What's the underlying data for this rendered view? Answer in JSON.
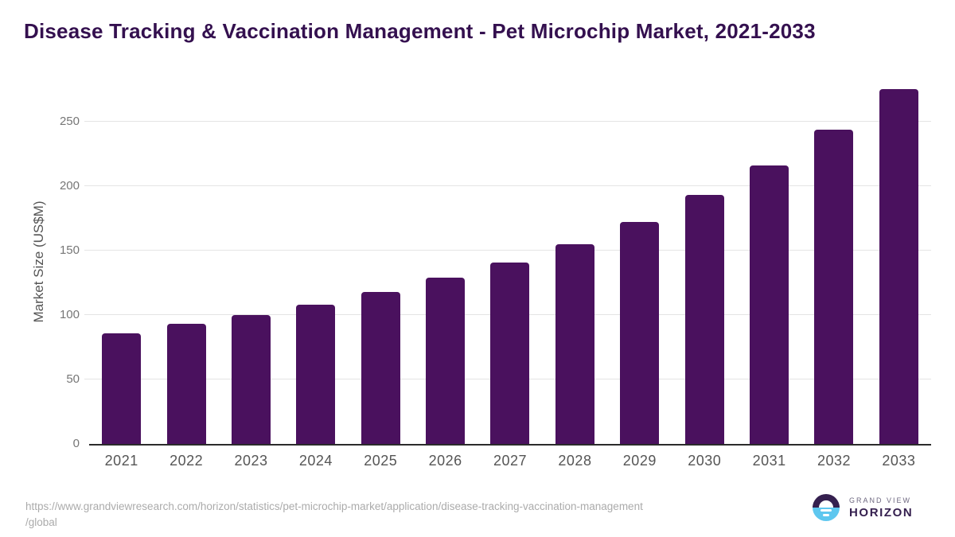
{
  "title": "Disease Tracking & Vaccination Management - Pet Microchip Market, 2021-2033",
  "chart_data": {
    "type": "bar",
    "title": "Disease Tracking & Vaccination Management - Pet Microchip Market, 2021-2033",
    "categories": [
      "2021",
      "2022",
      "2023",
      "2024",
      "2025",
      "2026",
      "2027",
      "2028",
      "2029",
      "2030",
      "2031",
      "2032",
      "2033"
    ],
    "values": [
      86,
      93,
      100,
      108,
      118,
      129,
      141,
      155,
      172,
      193,
      216,
      244,
      275
    ],
    "xlabel": "",
    "ylabel": "Market Size (US$M)",
    "ylim": [
      0,
      280
    ],
    "yticks": [
      0,
      50,
      100,
      150,
      200,
      250
    ],
    "grid": true,
    "legend": "none",
    "bar_color": "#4A115E",
    "gridline_color": "#e4e4e4",
    "axis_color": "#2b2b2b"
  },
  "footer": {
    "source_url_line1": "https://www.grandviewresearch.com/horizon/statistics/pet-microchip-market/application/disease-tracking-vaccination-management",
    "source_url_line2": "/global",
    "logo": {
      "top_text": "GRAND VIEW",
      "bottom_text": "HORIZON",
      "purple": "#35204F",
      "blue": "#5EC7EF"
    }
  }
}
